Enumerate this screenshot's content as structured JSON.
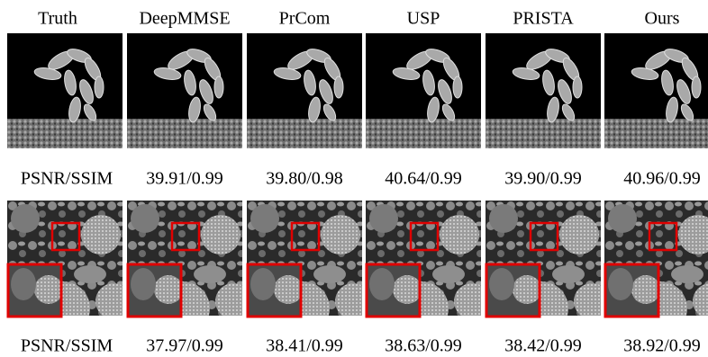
{
  "columns": [
    "Truth",
    "DeepMMSE",
    "PrCom",
    "USP",
    "PRISTA",
    "Ours"
  ],
  "rows": [
    {
      "label": "PSNR/SSIM",
      "values": [
        "39.91/0.99",
        "39.80/0.98",
        "40.64/0.99",
        "39.90/0.99",
        "40.96/0.99"
      ]
    },
    {
      "label": "PSNR/SSIM",
      "values": [
        "37.97/0.99",
        "38.41/0.99",
        "38.63/0.99",
        "38.42/0.99",
        "38.92/0.99"
      ]
    }
  ]
}
